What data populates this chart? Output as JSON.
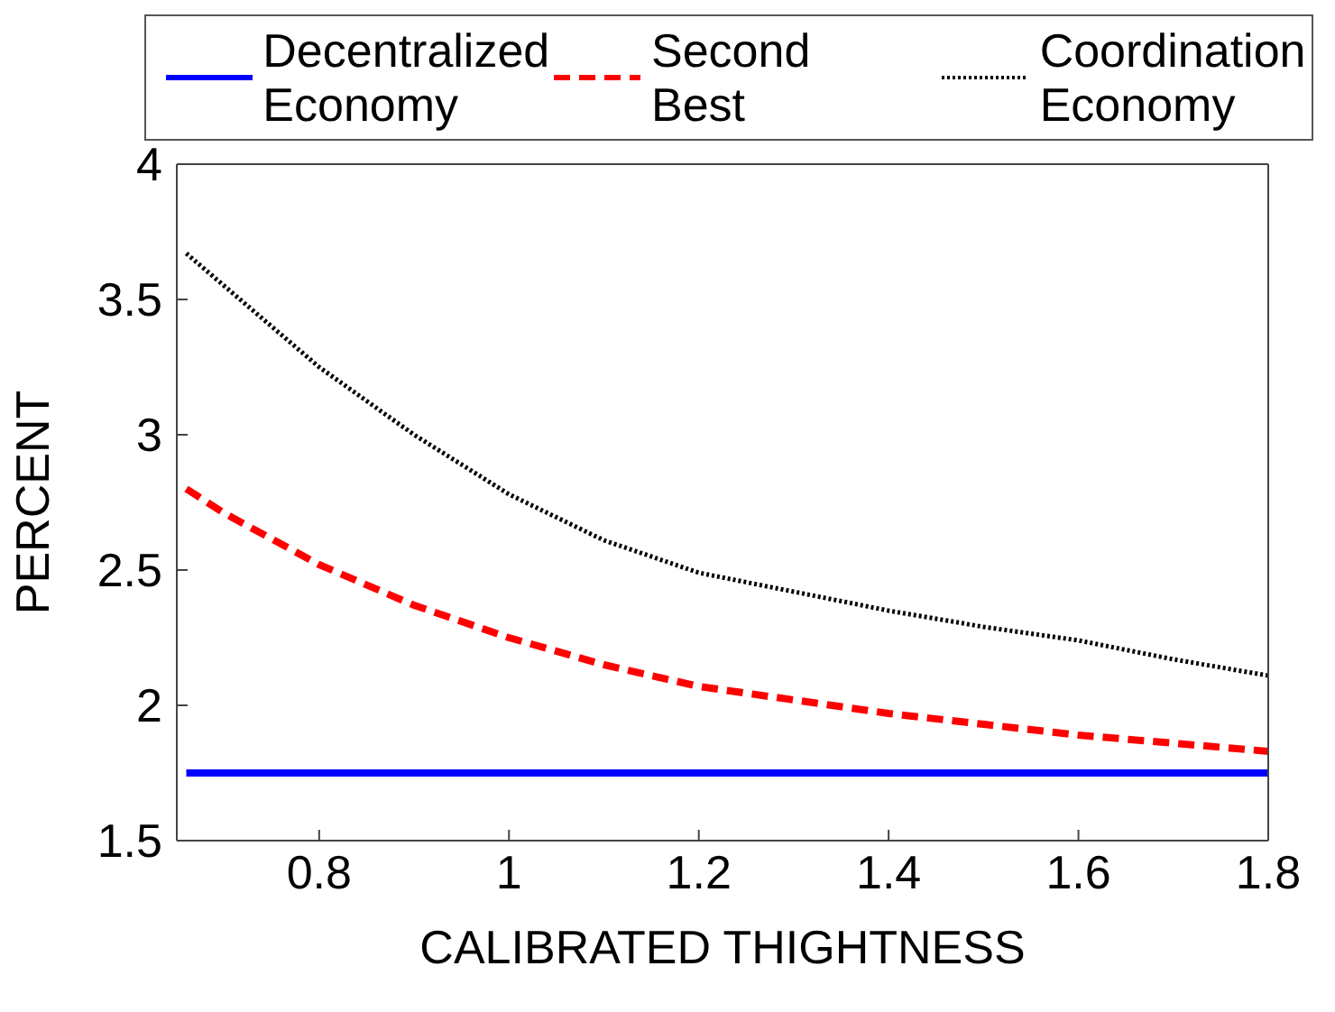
{
  "chart_data": {
    "type": "line",
    "xlabel": "CALIBRATED THIGHTNESS",
    "ylabel": "PERCENT",
    "x": [
      0.66,
      0.7,
      0.8,
      0.9,
      1.0,
      1.1,
      1.2,
      1.3,
      1.4,
      1.5,
      1.6,
      1.7,
      1.8
    ],
    "series": [
      {
        "name": "Decentralized Economy",
        "color": "#0000ff",
        "line_style": "solid",
        "values": [
          1.75,
          1.75,
          1.75,
          1.75,
          1.75,
          1.75,
          1.75,
          1.75,
          1.75,
          1.75,
          1.75,
          1.75,
          1.75
        ]
      },
      {
        "name": "Second Best",
        "color": "#ff0000",
        "line_style": "dashed",
        "values": [
          2.8,
          2.71,
          2.52,
          2.37,
          2.25,
          2.15,
          2.07,
          2.02,
          1.97,
          1.93,
          1.89,
          1.86,
          1.83
        ]
      },
      {
        "name": "Coordination Economy",
        "color": "#000000",
        "line_style": "dotted",
        "values": [
          3.67,
          3.55,
          3.25,
          3.0,
          2.78,
          2.61,
          2.49,
          2.42,
          2.35,
          2.29,
          2.24,
          2.17,
          2.11
        ]
      }
    ],
    "xlim": [
      0.65,
      1.8
    ],
    "xticks": [
      0.8,
      1,
      1.2,
      1.4,
      1.6,
      1.8
    ],
    "ylim": [
      1.5,
      4
    ],
    "yticks": [
      1.5,
      2,
      2.5,
      3,
      3.5,
      4
    ],
    "grid": false,
    "legend": "top",
    "marker": "none"
  }
}
